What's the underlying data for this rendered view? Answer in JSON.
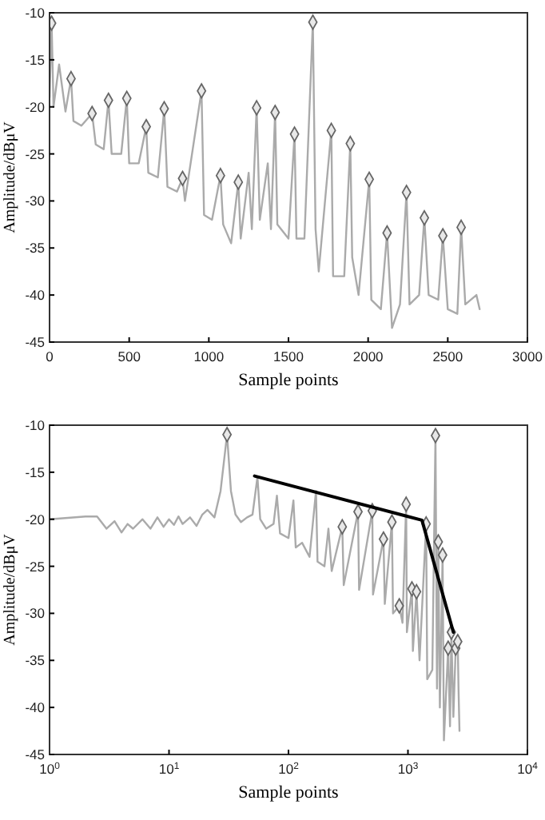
{
  "chart_data": [
    {
      "type": "line",
      "xlabel": "Sample points",
      "ylabel": "Amplitude/dBμV",
      "xlim": [
        0,
        3000
      ],
      "ylim": [
        -45,
        -10
      ],
      "xticks": [
        0,
        500,
        1000,
        1500,
        2000,
        2500,
        3000
      ],
      "yticks": [
        -45,
        -40,
        -35,
        -30,
        -25,
        -20,
        -15,
        -10
      ],
      "series": [
        {
          "type": "line",
          "color": "#aaaaaa",
          "x": [
            0,
            13,
            25,
            60,
            100,
            135,
            150,
            200,
            267,
            290,
            340,
            370,
            390,
            450,
            485,
            500,
            560,
            607,
            620,
            680,
            720,
            740,
            800,
            835,
            850,
            954,
            970,
            1020,
            1073,
            1090,
            1140,
            1185,
            1200,
            1250,
            1270,
            1300,
            1320,
            1370,
            1390,
            1416,
            1430,
            1500,
            1538,
            1550,
            1600,
            1653,
            1670,
            1690,
            1769,
            1780,
            1850,
            1888,
            1900,
            1940,
            2007,
            2020,
            2080,
            2119,
            2150,
            2200,
            2241,
            2260,
            2320,
            2353,
            2380,
            2440,
            2469,
            2500,
            2560,
            2584,
            2610,
            2680,
            2700
          ],
          "values": [
            -19,
            -11.1,
            -20,
            -15.5,
            -20.5,
            -17,
            -21.5,
            -22,
            -20.7,
            -24,
            -24.5,
            -19.3,
            -25,
            -25,
            -19.1,
            -26,
            -26,
            -22.1,
            -27,
            -27.5,
            -20.2,
            -28.5,
            -29,
            -27.6,
            -30,
            -18.3,
            -31.5,
            -32,
            -27.3,
            -32.5,
            -34.5,
            -28,
            -34,
            -27,
            -33,
            -20.1,
            -32,
            -26,
            -33,
            -20.6,
            -32.5,
            -34,
            -22.9,
            -34,
            -34,
            -11,
            -33,
            -37.5,
            -22.5,
            -38,
            -38,
            -23.9,
            -36,
            -40,
            -27.7,
            -40.5,
            -41.5,
            -33.4,
            -43.5,
            -41,
            -29.1,
            -41,
            -40,
            -31.8,
            -40,
            -40.5,
            -33.7,
            -41.5,
            -42,
            -32.8,
            -41,
            -40,
            -41.5
          ]
        },
        {
          "type": "scatter",
          "marker": "diamond",
          "color": "#666666",
          "x": [
            13,
            135,
            267,
            370,
            485,
            607,
            720,
            835,
            954,
            1073,
            1185,
            1300,
            1416,
            1538,
            1653,
            1769,
            1888,
            2007,
            2119,
            2241,
            2353,
            2469,
            2584
          ],
          "values": [
            -11.1,
            -17,
            -20.7,
            -19.3,
            -19.1,
            -22.1,
            -20.2,
            -27.6,
            -18.3,
            -27.3,
            -28,
            -20.1,
            -20.6,
            -22.9,
            -11,
            -22.5,
            -23.9,
            -27.7,
            -33.4,
            -29.1,
            -31.8,
            -33.7,
            -32.8
          ]
        }
      ]
    },
    {
      "type": "line",
      "log": "x",
      "xlabel": "Sample points",
      "ylabel": "Amplitude/dBμV",
      "xlim": [
        1,
        10000
      ],
      "ylim": [
        -45,
        -10
      ],
      "xticks": [
        {
          "value": 1,
          "label": "10$^{0}$"
        },
        {
          "value": 10,
          "label": "10$^{1}$"
        },
        {
          "value": 100,
          "label": "10$^{2}$"
        },
        {
          "value": 1000,
          "label": "10$^{3}$"
        },
        {
          "value": 10000,
          "label": "10$^{4}$"
        }
      ],
      "yticks": [
        -45,
        -40,
        -35,
        -30,
        -25,
        -20,
        -15,
        -10
      ],
      "series": [
        {
          "type": "line",
          "color": "#aaaaaa",
          "x": [
            1,
            2,
            2.5,
            3,
            3.5,
            4,
            4.5,
            5,
            6,
            7,
            8,
            9,
            10,
            11,
            12,
            13,
            15,
            17,
            19,
            21,
            24,
            27,
            30.6,
            33,
            36,
            40,
            45,
            50,
            55,
            58,
            65,
            75,
            80,
            85,
            100,
            110,
            115,
            130,
            150,
            170,
            175,
            200,
            216,
            230,
            282,
            290,
            382,
            390,
            503,
            510,
            624,
            640,
            734,
            750,
            846,
            900,
            966,
            980,
            1080,
            1100,
            1180,
            1250,
            1420,
            1450,
            1600,
            1700,
            1750,
            1795,
            1850,
            1950,
            2000,
            2170,
            2250,
            2310,
            2400,
            2510,
            2610,
            2650,
            2700
          ],
          "values": [
            -20,
            -19.7,
            -19.7,
            -21,
            -20.2,
            -21.4,
            -20.5,
            -21,
            -20,
            -21,
            -19.8,
            -20.8,
            -20,
            -20.6,
            -19.7,
            -20.5,
            -19.8,
            -20.7,
            -19.5,
            -19,
            -19.8,
            -17,
            -11,
            -17,
            -19.5,
            -20.3,
            -19.8,
            -19.5,
            -15.5,
            -20,
            -21,
            -20.5,
            -17.5,
            -21.5,
            -22,
            -18,
            -23,
            -22.5,
            -24,
            -17,
            -24.5,
            -25,
            -21,
            -25.5,
            -20.8,
            -27,
            -19.2,
            -27.5,
            -19.1,
            -28,
            -22.1,
            -29,
            -20.3,
            -30,
            -29.2,
            -31,
            -18.4,
            -32,
            -27.4,
            -34,
            -27.7,
            -35,
            -20.5,
            -37,
            -36,
            -11.1,
            -38,
            -22.4,
            -40,
            -23.8,
            -43.5,
            -33.7,
            -42,
            -32,
            -41,
            -33.7,
            -33,
            -38,
            -42.5
          ]
        },
        {
          "type": "scatter",
          "marker": "diamond",
          "color": "#666666",
          "x": [
            30.6,
            282,
            382,
            503,
            624,
            734,
            846,
            966,
            1080,
            1180,
            1420,
            1700,
            1795,
            1950,
            2170,
            2310,
            2510,
            2610
          ],
          "values": [
            -11,
            -20.8,
            -19.2,
            -19.1,
            -22.1,
            -20.3,
            -29.2,
            -18.4,
            -27.4,
            -27.7,
            -20.5,
            -11.1,
            -22.4,
            -23.8,
            -33.7,
            -32,
            -33.7,
            -33
          ]
        },
        {
          "type": "line",
          "color": "#000000",
          "x": [
            52,
            1310,
            2400
          ],
          "values": [
            -15.4,
            -20.1,
            -32
          ]
        }
      ]
    }
  ]
}
